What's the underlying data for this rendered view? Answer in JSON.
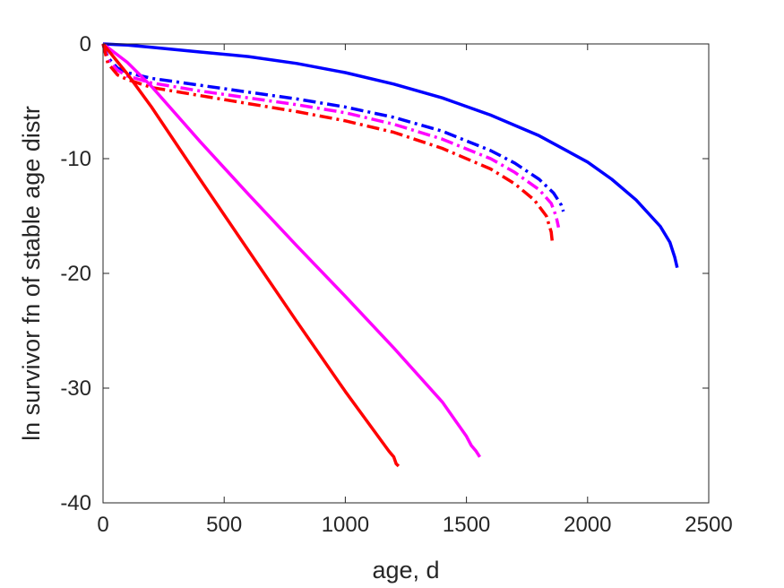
{
  "chart_data": {
    "type": "line",
    "xlabel": "age, d",
    "ylabel": "ln survivor fn of stable age distr",
    "xlim": [
      0,
      2500
    ],
    "ylim": [
      -40,
      0
    ],
    "xticks": [
      0,
      500,
      1000,
      1500,
      2000,
      2500
    ],
    "yticks": [
      0,
      -10,
      -20,
      -30,
      -40
    ],
    "xtick_labels": [
      "0",
      "500",
      "1000",
      "1500",
      "2000",
      "2500"
    ],
    "ytick_labels": [
      "0",
      "-10",
      "-20",
      "-30",
      "-40"
    ],
    "grid": false,
    "legend": "none",
    "series": [
      {
        "color": "#0000ff",
        "style": "solid",
        "x": [
          0,
          100,
          200,
          400,
          600,
          800,
          1000,
          1200,
          1400,
          1600,
          1800,
          2000,
          2100,
          2200,
          2300,
          2340,
          2360,
          2370
        ],
        "y": [
          0,
          -0.1,
          -0.3,
          -0.7,
          -1.1,
          -1.7,
          -2.5,
          -3.5,
          -4.7,
          -6.2,
          -8.0,
          -10.3,
          -11.8,
          -13.6,
          -15.9,
          -17.3,
          -18.6,
          -19.5
        ]
      },
      {
        "color": "#0000ff",
        "style": "dashdot",
        "x": [
          0,
          20,
          60,
          100,
          200,
          400,
          600,
          800,
          1000,
          1200,
          1400,
          1600,
          1700,
          1800,
          1860,
          1890,
          1900
        ],
        "y": [
          0,
          -1.2,
          -2.1,
          -2.5,
          -3.0,
          -3.6,
          -4.2,
          -4.8,
          -5.5,
          -6.4,
          -7.6,
          -9.3,
          -10.4,
          -11.8,
          -13.0,
          -14.0,
          -14.6
        ]
      },
      {
        "color": "#ff00ff",
        "style": "dashdot",
        "x": [
          0,
          20,
          60,
          100,
          200,
          400,
          600,
          800,
          1000,
          1200,
          1400,
          1600,
          1700,
          1800,
          1850,
          1870,
          1880
        ],
        "y": [
          0,
          -1.4,
          -2.3,
          -2.8,
          -3.4,
          -4.1,
          -4.7,
          -5.3,
          -6.0,
          -7.0,
          -8.3,
          -10.0,
          -11.2,
          -12.7,
          -13.9,
          -15.0,
          -16.0
        ]
      },
      {
        "color": "#ff0000",
        "style": "dashdot",
        "x": [
          0,
          20,
          60,
          100,
          200,
          400,
          600,
          800,
          1000,
          1200,
          1400,
          1600,
          1700,
          1780,
          1830,
          1850,
          1855
        ],
        "y": [
          0,
          -1.7,
          -2.7,
          -3.1,
          -3.8,
          -4.5,
          -5.2,
          -5.9,
          -6.7,
          -7.7,
          -9.1,
          -10.9,
          -12.2,
          -13.6,
          -15.0,
          -16.4,
          -17.4
        ]
      },
      {
        "color": "#ff00ff",
        "style": "solid",
        "x": [
          0,
          100,
          200,
          400,
          600,
          800,
          1000,
          1200,
          1400,
          1500,
          1520,
          1540,
          1555
        ],
        "y": [
          0,
          -1.6,
          -3.7,
          -8.5,
          -13.1,
          -17.6,
          -22.0,
          -26.5,
          -31.2,
          -34.2,
          -35.0,
          -35.5,
          -36.0
        ]
      },
      {
        "color": "#ff0000",
        "style": "solid",
        "x": [
          0,
          100,
          200,
          400,
          600,
          800,
          1000,
          1180,
          1200,
          1210,
          1220
        ],
        "y": [
          0,
          -2.6,
          -5.5,
          -11.8,
          -18.0,
          -24.2,
          -30.3,
          -35.5,
          -36.0,
          -36.6,
          -36.8
        ]
      }
    ]
  }
}
